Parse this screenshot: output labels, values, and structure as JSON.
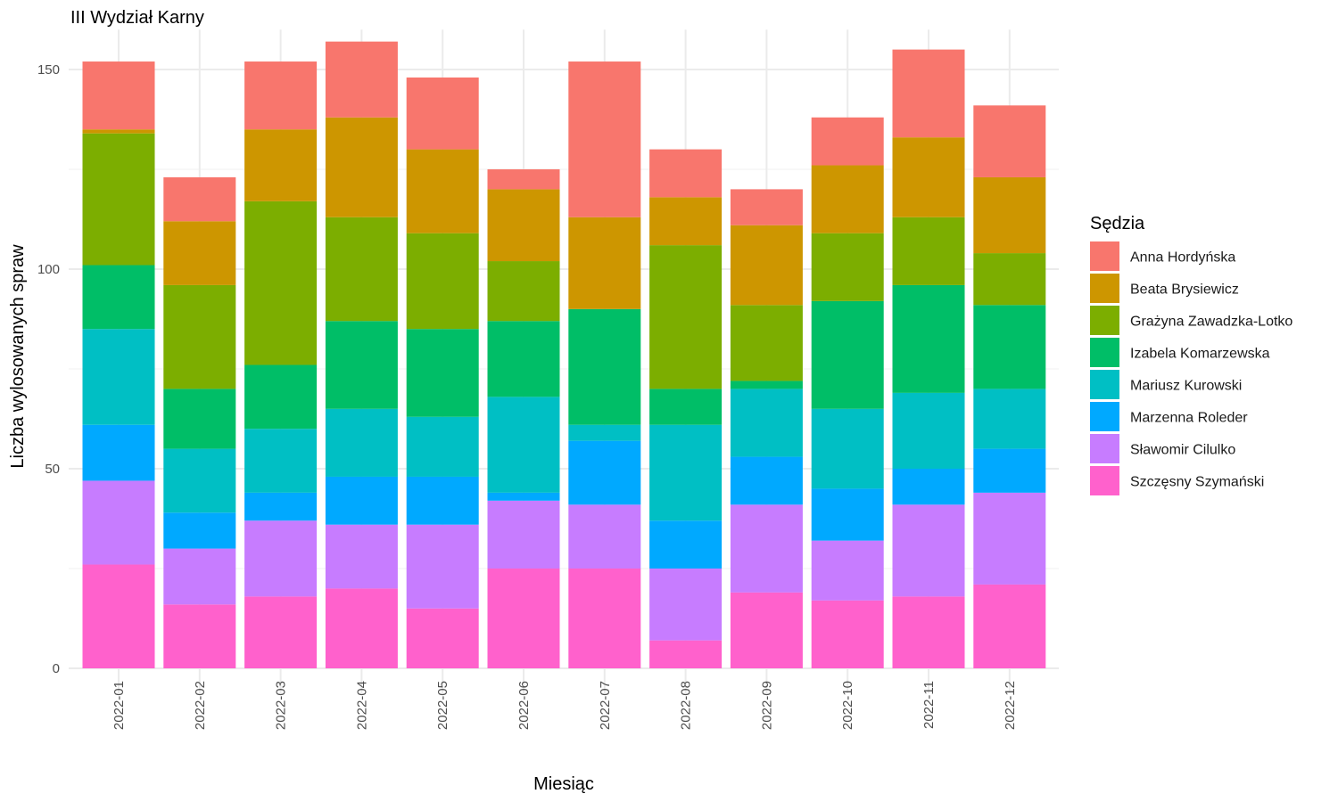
{
  "chart_data": {
    "type": "bar",
    "stacked": true,
    "title": "III Wydział Karny",
    "xlabel": "Miesiąc",
    "ylabel": "Liczba wylosowanych spraw",
    "ylim": [
      0,
      160
    ],
    "yticks": [
      0,
      50,
      100,
      150
    ],
    "grid": true,
    "legend": {
      "title": "Sędzia",
      "position": "right"
    },
    "categories": [
      "2022-01",
      "2022-02",
      "2022-03",
      "2022-04",
      "2022-05",
      "2022-06",
      "2022-07",
      "2022-08",
      "2022-09",
      "2022-10",
      "2022-11",
      "2022-12"
    ],
    "series": [
      {
        "name": "Szczęsny Szymański",
        "color": "#FF61CC",
        "values": [
          26,
          16,
          18,
          20,
          15,
          25,
          25,
          7,
          19,
          17,
          18,
          21
        ]
      },
      {
        "name": "Sławomir Cilulko",
        "color": "#C77CFF",
        "values": [
          21,
          14,
          19,
          16,
          21,
          17,
          16,
          18,
          22,
          15,
          23,
          23
        ]
      },
      {
        "name": "Marzenna Roleder",
        "color": "#00A9FF",
        "values": [
          14,
          9,
          7,
          12,
          12,
          2,
          16,
          12,
          12,
          13,
          9,
          11
        ]
      },
      {
        "name": "Mariusz Kurowski",
        "color": "#00BFC4",
        "values": [
          24,
          16,
          16,
          17,
          15,
          24,
          4,
          24,
          17,
          20,
          19,
          15
        ]
      },
      {
        "name": "Izabela Komarzewska",
        "color": "#00BE67",
        "values": [
          16,
          15,
          16,
          22,
          22,
          19,
          29,
          9,
          2,
          27,
          27,
          21
        ]
      },
      {
        "name": "Grażyna Zawadzka-Lotko",
        "color": "#7CAE00",
        "values": [
          33,
          26,
          41,
          26,
          24,
          15,
          0,
          36,
          19,
          17,
          17,
          13
        ]
      },
      {
        "name": "Beata Brysiewicz",
        "color": "#CD9600",
        "values": [
          1,
          16,
          18,
          25,
          21,
          18,
          23,
          12,
          20,
          17,
          20,
          19
        ]
      },
      {
        "name": "Anna Hordyńska",
        "color": "#F8766D",
        "values": [
          17,
          11,
          17,
          19,
          18,
          5,
          39,
          12,
          9,
          12,
          22,
          18
        ]
      }
    ]
  }
}
